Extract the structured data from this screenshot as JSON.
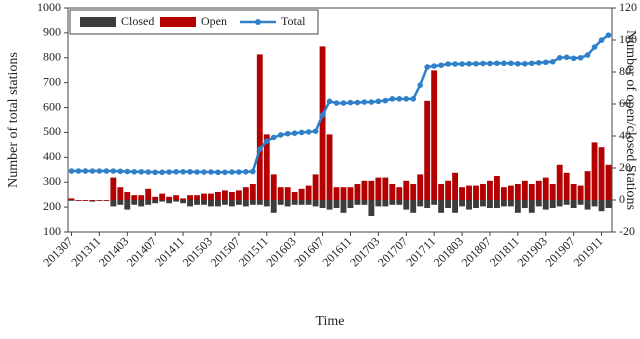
{
  "chart_data": {
    "type": "bar",
    "x_label": "Time",
    "y_label": "Number of total stations",
    "y2_label": "Number of open/closed Stations",
    "categories": [
      "201307",
      null,
      null,
      null,
      "201311",
      null,
      null,
      null,
      "201403",
      null,
      null,
      null,
      "201407",
      null,
      null,
      null,
      "201411",
      null,
      null,
      null,
      "201503",
      null,
      null,
      null,
      "201507",
      null,
      null,
      null,
      "201511",
      null,
      null,
      null,
      "201603",
      null,
      null,
      null,
      "201607",
      null,
      null,
      null,
      "201611",
      null,
      null,
      null,
      "201703",
      null,
      null,
      null,
      "201707",
      null,
      null,
      null,
      "201711",
      null,
      null,
      null,
      "201803",
      null,
      null,
      null,
      "201807",
      null,
      null,
      null,
      "201811",
      null,
      null,
      null,
      "201903",
      null,
      null,
      null,
      "201907",
      null,
      null,
      null,
      "201911",
      null
    ],
    "series": [
      {
        "name": "Closed",
        "type": "bar",
        "axis": "y2",
        "color": "#3c3c3c",
        "values": [
          0,
          0,
          0,
          -1,
          0,
          0,
          -4,
          -3,
          -6,
          -3,
          -4,
          -3,
          -2,
          -1,
          -2,
          -1,
          -2,
          -4,
          -3,
          -3,
          -4,
          -4,
          -3,
          -4,
          -3,
          -4,
          -3,
          -3,
          -4,
          -8,
          -3,
          -4,
          -3,
          -3,
          -3,
          -4,
          -5,
          -6,
          -5,
          -8,
          -5,
          -3,
          -3,
          -10,
          -4,
          -4,
          -3,
          -3,
          -6,
          -8,
          -4,
          -5,
          -3,
          -8,
          -5,
          -8,
          -4,
          -6,
          -5,
          -4,
          -5,
          -5,
          -4,
          -4,
          -8,
          -5,
          -8,
          -4,
          -6,
          -5,
          -4,
          -3,
          -5,
          -3,
          -6,
          -4,
          -7,
          -5
        ]
      },
      {
        "name": "Open",
        "type": "bar",
        "axis": "y2",
        "color": "#b40000",
        "values": [
          1,
          0,
          0,
          0,
          0,
          0,
          14,
          8,
          5,
          3,
          3,
          7,
          2,
          4,
          2,
          3,
          1,
          3,
          3,
          4,
          4,
          5,
          6,
          5,
          6,
          8,
          10,
          91,
          41,
          16,
          8,
          8,
          5,
          7,
          9,
          16,
          96,
          41,
          8,
          8,
          8,
          10,
          12,
          12,
          14,
          14,
          10,
          8,
          12,
          10,
          16,
          62,
          81,
          10,
          12,
          17,
          8,
          9,
          9,
          10,
          12,
          15,
          8,
          9,
          10,
          12,
          10,
          12,
          14,
          10,
          22,
          17,
          10,
          9,
          18,
          36,
          33,
          22
        ]
      },
      {
        "name": "Total",
        "type": "line",
        "color": "#2f80c8",
        "values": [
          345,
          345,
          345,
          345,
          345,
          345,
          345,
          344,
          343,
          342,
          342,
          341,
          340,
          340,
          341,
          342,
          342,
          342,
          341,
          341,
          341,
          340,
          340,
          341,
          341,
          342,
          343,
          433,
          465,
          480,
          490,
          495,
          497,
          500,
          502,
          505,
          570,
          625,
          618,
          618,
          620,
          620,
          622,
          622,
          625,
          628,
          635,
          635,
          635,
          635,
          690,
          763,
          767,
          770,
          775,
          775,
          775,
          776,
          776,
          777,
          777,
          778,
          778,
          778,
          776,
          776,
          778,
          780,
          782,
          784,
          800,
          802,
          798,
          800,
          811,
          843,
          871,
          891
        ]
      }
    ],
    "ylim": [
      100,
      1000
    ],
    "yticks": [
      100,
      200,
      300,
      400,
      500,
      600,
      700,
      800,
      900,
      1000
    ],
    "y2lim": [
      -20,
      120
    ],
    "y2ticks": [
      -20,
      0,
      20,
      40,
      60,
      80,
      100,
      120
    ],
    "grid": false,
    "legend": "upper left"
  }
}
